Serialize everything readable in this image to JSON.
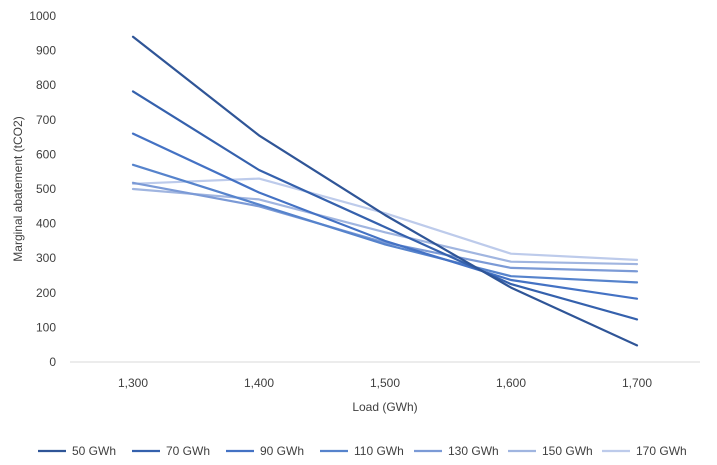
{
  "chart_data": {
    "type": "line",
    "title": "",
    "xlabel": "Load (GWh)",
    "ylabel": "Marginal abatement (tCO2)",
    "categories": [
      "1,300",
      "1,400",
      "1,500",
      "1,600",
      "1,700"
    ],
    "ylim": [
      0,
      1000
    ],
    "yticks": [
      0,
      100,
      200,
      300,
      400,
      500,
      600,
      700,
      800,
      900,
      1000
    ],
    "grid": false,
    "legend_position": "bottom",
    "series": [
      {
        "name": "50 GWh",
        "color": "#2f5597",
        "values": [
          940,
          655,
          425,
          215,
          48
        ]
      },
      {
        "name": "70 GWh",
        "color": "#3561ad",
        "values": [
          782,
          555,
          390,
          225,
          123
        ]
      },
      {
        "name": "90 GWh",
        "color": "#4472c4",
        "values": [
          660,
          490,
          350,
          237,
          183
        ]
      },
      {
        "name": "110 GWh",
        "color": "#5683cc",
        "values": [
          570,
          455,
          340,
          248,
          230
        ]
      },
      {
        "name": "130 GWh",
        "color": "#7b9ad6",
        "values": [
          518,
          450,
          345,
          272,
          262
        ]
      },
      {
        "name": "150 GWh",
        "color": "#a0b5e0",
        "values": [
          500,
          470,
          375,
          290,
          283
        ]
      },
      {
        "name": "170 GWh",
        "color": "#bdcbeb",
        "values": [
          515,
          530,
          430,
          313,
          295
        ]
      }
    ]
  }
}
